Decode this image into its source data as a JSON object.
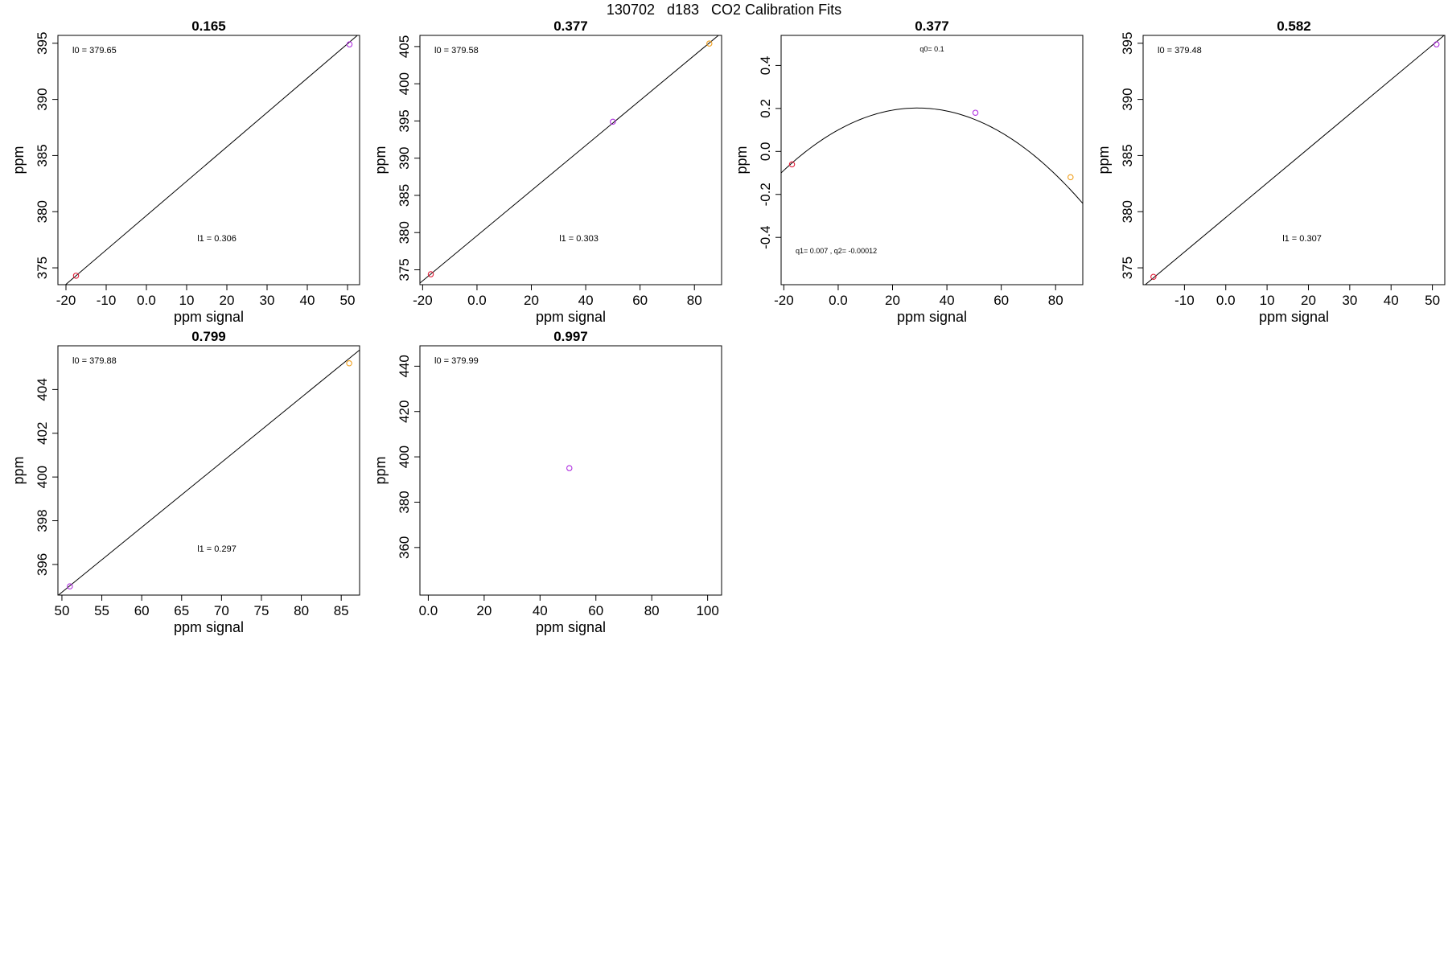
{
  "figure": {
    "title": "130702   d183   CO2 Calibration Fits",
    "background": "#ffffff",
    "colors": {
      "axis": "#000000",
      "fit_line": "#000000",
      "red": "#e0203a",
      "purple": "#b030e0",
      "orange": "#f0a020"
    }
  },
  "chart_data": [
    {
      "type": "scatter",
      "title": "0.165",
      "xlabel": "ppm signal",
      "ylabel": "ppm",
      "xlim": [
        -22,
        53
      ],
      "ylim": [
        373.5,
        395.7
      ],
      "xticks": [
        -20,
        -10,
        0,
        10,
        20,
        30,
        40,
        50
      ],
      "yticks": [
        375,
        380,
        385,
        390,
        395
      ],
      "points": [
        {
          "x": -17.5,
          "y": 374.3,
          "color": "red"
        },
        {
          "x": 50.5,
          "y": 394.9,
          "color": "purple"
        }
      ],
      "fit": {
        "kind": "linear",
        "l0": 379.65,
        "l1": 0.306
      },
      "annotations": [
        {
          "text": "l0 =  379.65",
          "pos": "top-left"
        },
        {
          "text": "l1 =  0.306",
          "pos": "bottom-center"
        }
      ]
    },
    {
      "type": "scatter",
      "title": "0.377",
      "xlabel": "ppm signal",
      "ylabel": "ppm",
      "xlim": [
        -21,
        90
      ],
      "ylim": [
        373,
        406.5
      ],
      "xticks": [
        -20,
        0,
        20,
        40,
        60,
        80
      ],
      "yticks": [
        375,
        380,
        385,
        390,
        395,
        400,
        405
      ],
      "points": [
        {
          "x": -17,
          "y": 374.4,
          "color": "red"
        },
        {
          "x": 50,
          "y": 394.9,
          "color": "purple"
        },
        {
          "x": 85.5,
          "y": 405.4,
          "color": "orange"
        }
      ],
      "fit": {
        "kind": "linear",
        "l0": 379.58,
        "l1": 0.303
      },
      "annotations": [
        {
          "text": "l0 =  379.58",
          "pos": "top-left"
        },
        {
          "text": "l1 =  0.303",
          "pos": "bottom-center"
        }
      ]
    },
    {
      "type": "scatter",
      "title": "0.377",
      "xlabel": "ppm signal",
      "ylabel": "ppm",
      "xlim": [
        -21,
        90
      ],
      "ylim": [
        -0.62,
        0.54
      ],
      "xticks": [
        -20,
        0,
        20,
        40,
        60,
        80
      ],
      "yticks": [
        -0.4,
        -0.2,
        0.0,
        0.2,
        0.4
      ],
      "points": [
        {
          "x": -17,
          "y": -0.06,
          "color": "red"
        },
        {
          "x": 50.5,
          "y": 0.18,
          "color": "purple"
        },
        {
          "x": 85.5,
          "y": -0.12,
          "color": "orange"
        }
      ],
      "fit": {
        "kind": "quadratic",
        "q0": 0.1,
        "q1": 0.007,
        "q2": -0.00012
      },
      "annotations": [
        {
          "text": "q0= 0.1",
          "pos": "top-center"
        },
        {
          "text": "q1= 0.007 , q2= -0.00012",
          "pos": "bottom-left"
        }
      ]
    },
    {
      "type": "scatter",
      "title": "0.582",
      "xlabel": "ppm signal",
      "ylabel": "ppm",
      "xlim": [
        -20,
        53
      ],
      "ylim": [
        373.5,
        395.7
      ],
      "xticks": [
        -10,
        0,
        10,
        20,
        30,
        40,
        50
      ],
      "yticks": [
        375,
        380,
        385,
        390,
        395
      ],
      "points": [
        {
          "x": -17.5,
          "y": 374.2,
          "color": "red"
        },
        {
          "x": 51,
          "y": 394.9,
          "color": "purple"
        }
      ],
      "fit": {
        "kind": "linear",
        "l0": 379.48,
        "l1": 0.307
      },
      "annotations": [
        {
          "text": "l0 =  379.48",
          "pos": "top-left"
        },
        {
          "text": "l1 =  0.307",
          "pos": "bottom-center"
        }
      ]
    },
    {
      "type": "scatter",
      "title": "0.799",
      "xlabel": "ppm signal",
      "ylabel": "ppm",
      "xlim": [
        49.5,
        87.3
      ],
      "ylim": [
        394.6,
        406.0
      ],
      "xticks": [
        50,
        55,
        60,
        65,
        70,
        75,
        80,
        85
      ],
      "yticks": [
        396,
        398,
        400,
        402,
        404
      ],
      "points": [
        {
          "x": 51,
          "y": 395.0,
          "color": "purple"
        },
        {
          "x": 86,
          "y": 405.2,
          "color": "orange"
        }
      ],
      "fit": {
        "kind": "linear",
        "l0": 379.88,
        "l1": 0.297
      },
      "annotations": [
        {
          "text": "l0 =  379.88",
          "pos": "top-left"
        },
        {
          "text": "l1 =  0.297",
          "pos": "bottom-center"
        }
      ]
    },
    {
      "type": "scatter",
      "title": "0.997",
      "xlabel": "ppm signal",
      "ylabel": "ppm",
      "xlim": [
        -3,
        105
      ],
      "ylim": [
        339,
        449
      ],
      "xticks": [
        0,
        20,
        40,
        60,
        80,
        100
      ],
      "yticks": [
        360,
        380,
        400,
        420,
        440
      ],
      "points": [
        {
          "x": 50.5,
          "y": 395,
          "color": "purple"
        }
      ],
      "fit": {
        "kind": "none",
        "l0": 379.99
      },
      "annotations": [
        {
          "text": "l0 =  379.99",
          "pos": "top-left"
        }
      ]
    }
  ]
}
